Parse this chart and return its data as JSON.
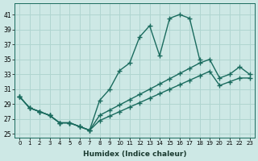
{
  "xlabel": "Humidex (Indice chaleur)",
  "bg_color": "#cde8e5",
  "grid_color": "#b0d5d0",
  "line_color": "#1a6b5e",
  "xlim": [
    -0.5,
    23.5
  ],
  "ylim": [
    24.5,
    42.5
  ],
  "xticks": [
    0,
    1,
    2,
    3,
    4,
    5,
    6,
    7,
    8,
    9,
    10,
    11,
    12,
    13,
    14,
    15,
    16,
    17,
    18,
    19,
    20,
    21,
    22,
    23
  ],
  "yticks": [
    25,
    27,
    29,
    31,
    33,
    35,
    37,
    39,
    41
  ],
  "curve1_x": [
    0,
    1,
    2,
    3,
    4,
    5,
    6,
    7,
    8,
    9,
    10,
    11,
    12,
    13,
    14,
    15,
    16,
    17,
    18
  ],
  "curve1_y": [
    30.0,
    28.5,
    28.0,
    27.5,
    26.5,
    26.5,
    26.0,
    25.5,
    29.5,
    31.0,
    33.5,
    34.5,
    38.0,
    39.5,
    35.5,
    40.5,
    41.0,
    40.5,
    35.0
  ],
  "curve2_x": [
    0,
    1,
    2,
    3,
    4,
    5,
    6,
    7,
    8,
    9,
    10,
    11,
    12,
    13,
    14,
    15,
    16,
    17,
    18,
    19,
    20,
    21,
    22,
    23
  ],
  "curve2_y": [
    30.0,
    28.5,
    28.0,
    27.5,
    26.5,
    26.5,
    26.0,
    25.5,
    27.5,
    28.2,
    28.9,
    29.6,
    30.3,
    31.0,
    31.7,
    32.4,
    33.1,
    33.8,
    34.5,
    35.0,
    32.5,
    33.0,
    34.0,
    33.0
  ],
  "curve3_x": [
    0,
    1,
    2,
    3,
    4,
    5,
    6,
    7,
    8,
    9,
    10,
    11,
    12,
    13,
    14,
    15,
    16,
    17,
    18,
    19,
    20,
    21,
    22,
    23
  ],
  "curve3_y": [
    30.0,
    28.5,
    28.0,
    27.5,
    26.5,
    26.5,
    26.0,
    25.5,
    26.8,
    27.4,
    28.0,
    28.6,
    29.2,
    29.8,
    30.4,
    31.0,
    31.6,
    32.2,
    32.8,
    33.4,
    31.5,
    32.0,
    32.5,
    32.5
  ]
}
